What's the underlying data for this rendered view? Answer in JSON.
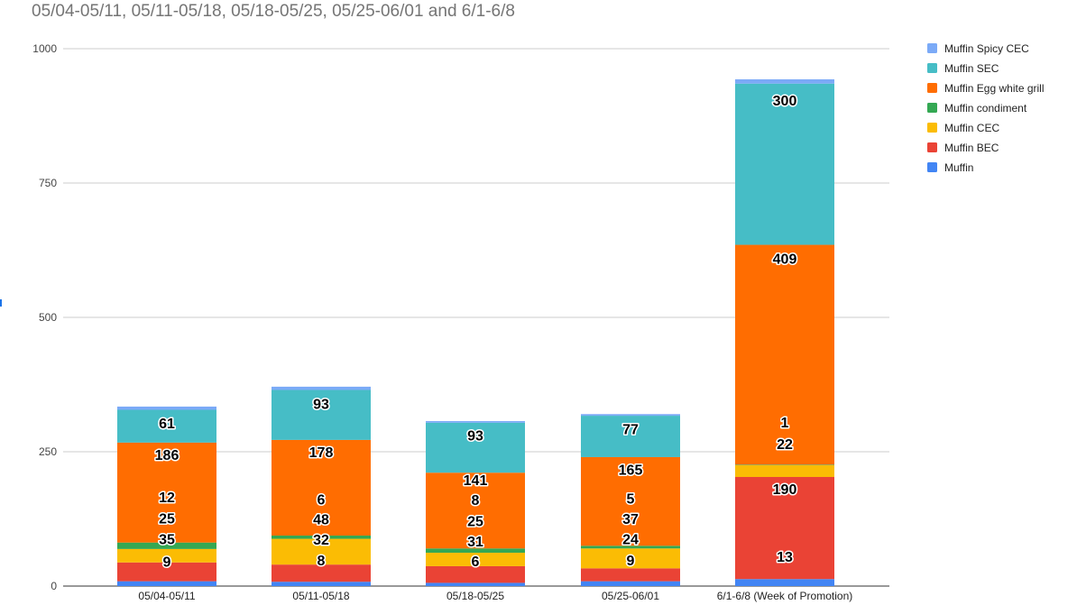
{
  "chart_data": {
    "type": "bar",
    "stacked": true,
    "title": "05/04-05/11, 05/11-05/18, 05/18-05/25, 05/25-06/01 and 6/1-6/8",
    "xlabel": "",
    "ylabel": "",
    "ylim": [
      0,
      1000
    ],
    "yticks": [
      0,
      250,
      500,
      750,
      1000
    ],
    "grid": true,
    "legend_position": "right",
    "categories": [
      "05/04-05/11",
      "05/11-05/18",
      "05/18-05/25",
      "05/25-06/01",
      "6/1-6/8 (Week of Promotion)"
    ],
    "series": [
      {
        "name": "Muffin",
        "color": "#4285f4",
        "values": [
          9,
          8,
          6,
          9,
          13
        ]
      },
      {
        "name": "Muffin BEC",
        "color": "#ea4335",
        "values": [
          35,
          32,
          31,
          24,
          190
        ]
      },
      {
        "name": "Muffin CEC",
        "color": "#fbbc04",
        "values": [
          25,
          48,
          25,
          37,
          22
        ]
      },
      {
        "name": "Muffin condiment",
        "color": "#34a853",
        "values": [
          12,
          6,
          8,
          5,
          1
        ]
      },
      {
        "name": "Muffin Egg white grill",
        "color": "#ff6d01",
        "values": [
          186,
          178,
          141,
          165,
          409
        ]
      },
      {
        "name": "Muffin SEC",
        "color": "#46bdc6",
        "values": [
          61,
          93,
          93,
          77,
          300
        ]
      },
      {
        "name": "Muffin Spicy CEC",
        "color": "#7baaf7",
        "values": [
          6,
          6,
          3,
          3,
          8
        ]
      }
    ],
    "data_labels": [
      [
        {
          "text": "9",
          "at": 46
        },
        {
          "text": "35",
          "at": 88
        },
        {
          "text": "25",
          "at": 127
        },
        {
          "text": "12",
          "at": 166
        },
        {
          "text": "186",
          "at": 245
        },
        {
          "text": "61",
          "at": 304
        }
      ],
      [
        {
          "text": "8",
          "at": 49
        },
        {
          "text": "32",
          "at": 87
        },
        {
          "text": "48",
          "at": 125
        },
        {
          "text": "6",
          "at": 162
        },
        {
          "text": "178",
          "at": 250
        },
        {
          "text": "93",
          "at": 340
        }
      ],
      [
        {
          "text": "6",
          "at": 47
        },
        {
          "text": "31",
          "at": 84
        },
        {
          "text": "25",
          "at": 122
        },
        {
          "text": "8",
          "at": 161
        },
        {
          "text": "141",
          "at": 198
        },
        {
          "text": "93",
          "at": 281
        }
      ],
      [
        {
          "text": "9",
          "at": 49
        },
        {
          "text": "24",
          "at": 88
        },
        {
          "text": "37",
          "at": 126
        },
        {
          "text": "5",
          "at": 164
        },
        {
          "text": "165",
          "at": 217
        },
        {
          "text": "77",
          "at": 293
        }
      ],
      [
        {
          "text": "13",
          "at": 55
        },
        {
          "text": "190",
          "at": 181
        },
        {
          "text": "22",
          "at": 265
        },
        {
          "text": "1",
          "at": 305
        },
        {
          "text": "409",
          "at": 610
        },
        {
          "text": "300",
          "at": 904
        }
      ]
    ]
  }
}
